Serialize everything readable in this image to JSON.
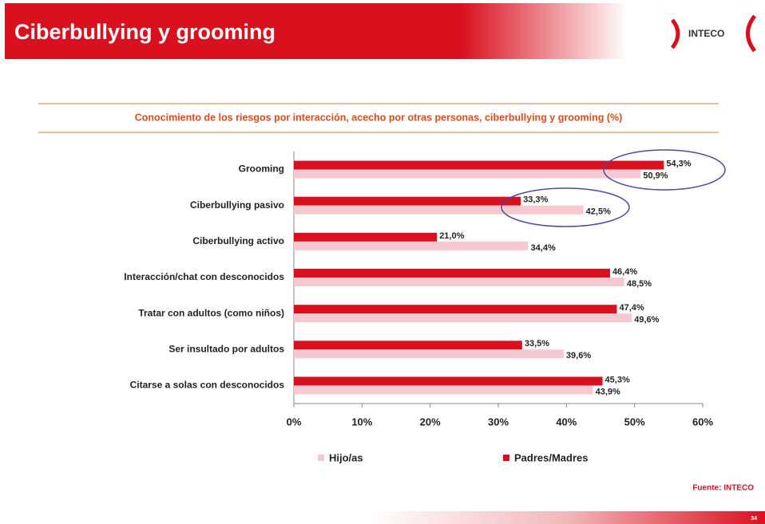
{
  "header": {
    "title": "Ciberbullying y grooming",
    "logo": "INTECO"
  },
  "chart_data": {
    "type": "bar",
    "orientation": "horizontal",
    "title": "Conocimiento de los riesgos por interacción, acecho por otras personas, ciberbullying y grooming (%)",
    "categories": [
      "Grooming",
      "Ciberbullying pasivo",
      "Ciberbullying activo",
      "Interacción/chat con desconocidos",
      "Tratar con adultos (como niños)",
      "Ser insultado por adultos",
      "Citarse a solas con desconocidos"
    ],
    "series": [
      {
        "name": "Hijo/as",
        "color": "#f6c9d1",
        "values": [
          50.9,
          42.5,
          34.4,
          48.5,
          49.6,
          39.6,
          43.9
        ],
        "value_labels": [
          "50,9%",
          "42,5%",
          "34,4%",
          "48,5%",
          "49,6%",
          "39,6%",
          "43,9%"
        ]
      },
      {
        "name": "Padres/Madres",
        "color": "#d9101e",
        "values": [
          54.3,
          33.3,
          21.0,
          46.4,
          47.4,
          33.5,
          45.3
        ],
        "value_labels": [
          "54,3%",
          "33,3%",
          "21,0%",
          "46,4%",
          "47,4%",
          "33,5%",
          "45,3%"
        ]
      }
    ],
    "xlim": [
      0,
      60
    ],
    "xticks": [
      {
        "value": 0,
        "label": "0%"
      },
      {
        "value": 10,
        "label": "10%"
      },
      {
        "value": 20,
        "label": "20%"
      },
      {
        "value": 30,
        "label": "30%"
      },
      {
        "value": 40,
        "label": "40%"
      },
      {
        "value": 50,
        "label": "50%"
      },
      {
        "value": 60,
        "label": "60%"
      }
    ],
    "legend": "bottom",
    "source": "Fuente: INTECO"
  },
  "footer": {
    "page": "34"
  }
}
